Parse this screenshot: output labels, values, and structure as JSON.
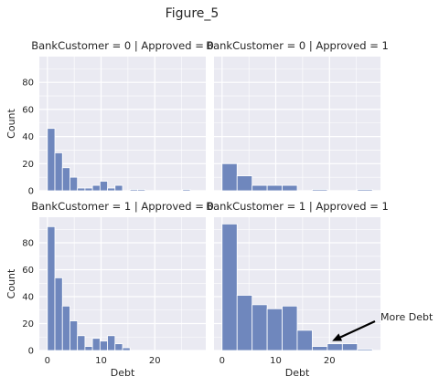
{
  "figure": {
    "title": "Figure_5"
  },
  "chart_data": {
    "type": "bar",
    "title": "Figure_5",
    "xlabel": "Debt",
    "ylabel": "Count",
    "grid": true,
    "xlim": [
      -1.5,
      29.5
    ],
    "ylim": [
      0,
      99
    ],
    "xticks": [
      0,
      10,
      20
    ],
    "yticks": [
      0,
      20,
      40,
      60,
      80
    ],
    "panels": [
      {
        "title": "BankCustomer = 0 | Approved = 0",
        "bin_width": 1.4,
        "bins": [
          {
            "x0": 0.0,
            "count": 46
          },
          {
            "x0": 1.4,
            "count": 28
          },
          {
            "x0": 2.8,
            "count": 17
          },
          {
            "x0": 4.2,
            "count": 10
          },
          {
            "x0": 5.6,
            "count": 2
          },
          {
            "x0": 7.0,
            "count": 2
          },
          {
            "x0": 8.4,
            "count": 4
          },
          {
            "x0": 9.8,
            "count": 7
          },
          {
            "x0": 11.2,
            "count": 2
          },
          {
            "x0": 12.6,
            "count": 4
          },
          {
            "x0": 14.0,
            "count": 0
          },
          {
            "x0": 15.4,
            "count": 1
          },
          {
            "x0": 16.8,
            "count": 1
          },
          {
            "x0": 18.2,
            "count": 0
          },
          {
            "x0": 19.6,
            "count": 0
          },
          {
            "x0": 21.0,
            "count": 0
          },
          {
            "x0": 22.4,
            "count": 0
          },
          {
            "x0": 23.8,
            "count": 0
          },
          {
            "x0": 25.2,
            "count": 1
          }
        ]
      },
      {
        "title": "BankCustomer = 0 | Approved = 1",
        "bin_width": 2.8,
        "bins": [
          {
            "x0": 0.0,
            "count": 20
          },
          {
            "x0": 2.8,
            "count": 11
          },
          {
            "x0": 5.6,
            "count": 4
          },
          {
            "x0": 8.4,
            "count": 4
          },
          {
            "x0": 11.2,
            "count": 4
          },
          {
            "x0": 14.0,
            "count": 0
          },
          {
            "x0": 16.8,
            "count": 1
          },
          {
            "x0": 19.6,
            "count": 0
          },
          {
            "x0": 22.4,
            "count": 0
          },
          {
            "x0": 25.2,
            "count": 1
          }
        ]
      },
      {
        "title": "BankCustomer = 1 | Approved = 0",
        "bin_width": 1.4,
        "bins": [
          {
            "x0": 0.0,
            "count": 92
          },
          {
            "x0": 1.4,
            "count": 54
          },
          {
            "x0": 2.8,
            "count": 33
          },
          {
            "x0": 4.2,
            "count": 22
          },
          {
            "x0": 5.6,
            "count": 11
          },
          {
            "x0": 7.0,
            "count": 3
          },
          {
            "x0": 8.4,
            "count": 9
          },
          {
            "x0": 9.8,
            "count": 7
          },
          {
            "x0": 11.2,
            "count": 11
          },
          {
            "x0": 12.6,
            "count": 5
          },
          {
            "x0": 14.0,
            "count": 2
          }
        ]
      },
      {
        "title": "BankCustomer = 1 | Approved = 1",
        "bin_width": 2.8,
        "bins": [
          {
            "x0": 0.0,
            "count": 94
          },
          {
            "x0": 2.8,
            "count": 41
          },
          {
            "x0": 5.6,
            "count": 34
          },
          {
            "x0": 8.4,
            "count": 31
          },
          {
            "x0": 11.2,
            "count": 33
          },
          {
            "x0": 14.0,
            "count": 15
          },
          {
            "x0": 16.8,
            "count": 3
          },
          {
            "x0": 19.6,
            "count": 5
          },
          {
            "x0": 22.4,
            "count": 5
          },
          {
            "x0": 25.2,
            "count": 1
          }
        ]
      }
    ],
    "annotation": {
      "text": "More Debt",
      "panel": 3,
      "arrow_tip": {
        "x": 20.5,
        "y": 7
      }
    },
    "colors": {
      "bar": "#6f87bd",
      "bar_edge": "#ffffff",
      "plot_bg": "#eaeaf2",
      "grid": "#ffffff"
    }
  }
}
